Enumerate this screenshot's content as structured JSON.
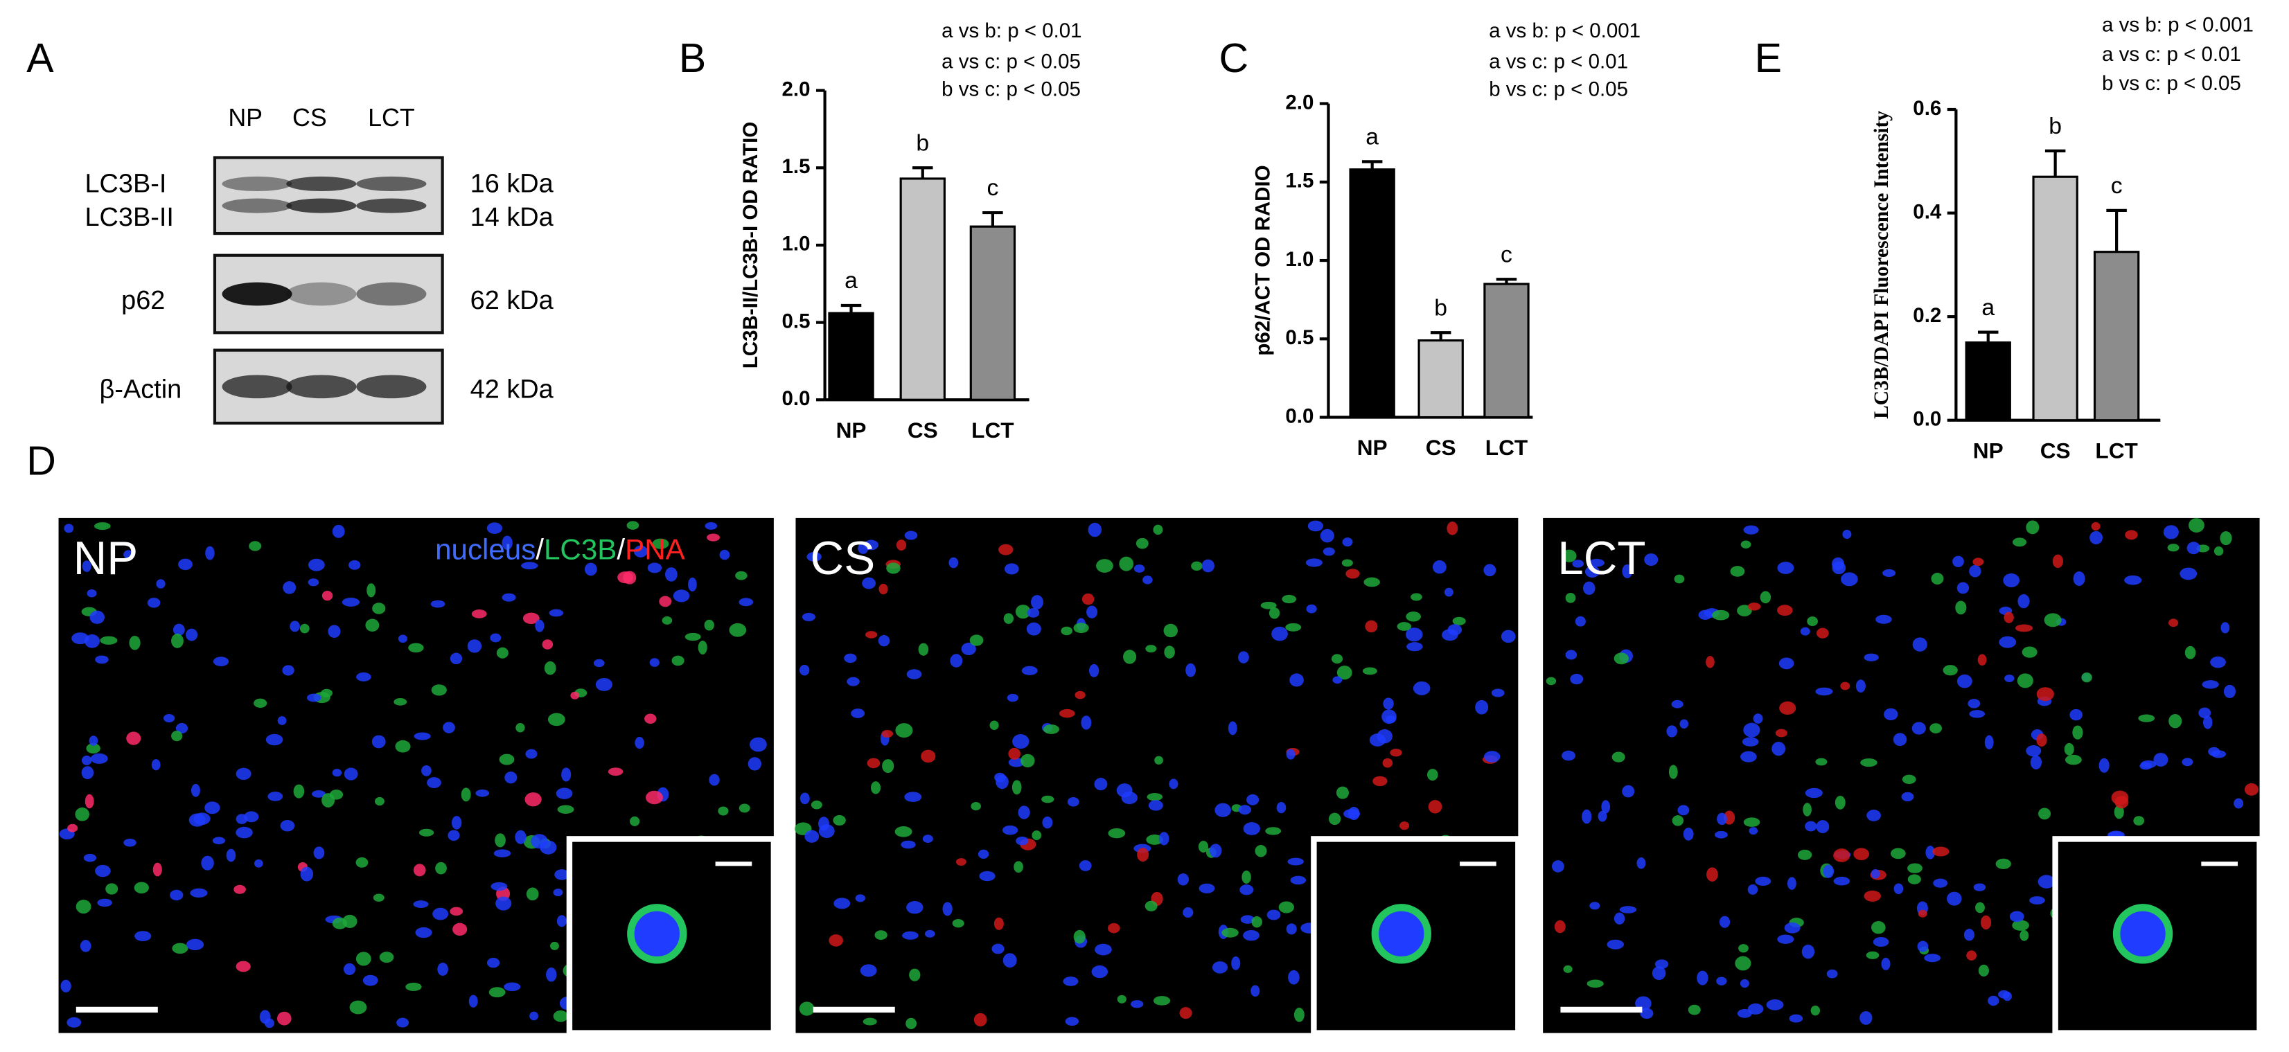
{
  "figure": {
    "panel_a": {
      "panel": "A",
      "lanes": [
        "NP",
        "CS",
        "LCT"
      ],
      "rows": [
        {
          "labels": [
            "LC3B-I",
            "LC3B-II"
          ],
          "sizes": [
            "16 kDa",
            "14 kDa"
          ]
        },
        {
          "labels": [
            "p62"
          ],
          "sizes": [
            "62 kDa"
          ]
        },
        {
          "labels": [
            "β-Actin"
          ],
          "sizes": [
            "42 kDa"
          ]
        }
      ]
    },
    "panel_d": {
      "panel": "D",
      "legend": [
        {
          "text": "nucleus",
          "color": "#3f6cff"
        },
        {
          "text": "/",
          "color": "#ffffff"
        },
        {
          "text": "LC3B",
          "color": "#22c55e"
        },
        {
          "text": "/",
          "color": "#ffffff"
        },
        {
          "text": "PNA",
          "color": "#ff2020"
        }
      ],
      "images": [
        "NP",
        "CS",
        "LCT"
      ]
    }
  },
  "chart_data": [
    {
      "type": "bar",
      "panel": "B",
      "y_label": "LC3B-II/LC3B-I OD RATIO",
      "annotations": [
        "a vs b: p < 0.01",
        "a vs c: p < 0.05",
        "b vs c: p < 0.05"
      ],
      "categories": [
        "NP",
        "CS",
        "LCT"
      ],
      "values": [
        0.56,
        1.43,
        1.12
      ],
      "errors": [
        0.05,
        0.07,
        0.09
      ],
      "bar_labels": [
        "a",
        "b",
        "c"
      ],
      "colors": [
        "#000000",
        "#c4c4c4",
        "#8c8c8c"
      ],
      "ylim": [
        0,
        2
      ],
      "yticks": [
        {
          "value": 0,
          "label": "0.0"
        },
        {
          "value": 0.5,
          "label": "0.5"
        },
        {
          "value": 1,
          "label": "1.0"
        },
        {
          "value": 1.5,
          "label": "1.5"
        },
        {
          "value": 2,
          "label": "2.0"
        }
      ]
    },
    {
      "type": "bar",
      "panel": "C",
      "y_label": "p62/ACT OD RADIO",
      "annotations": [
        "a vs b: p < 0.001",
        "a vs c: p < 0.01",
        "b vs c: p < 0.05"
      ],
      "categories": [
        "NP",
        "CS",
        "LCT"
      ],
      "values": [
        1.58,
        0.49,
        0.85
      ],
      "errors": [
        0.05,
        0.05,
        0.03
      ],
      "bar_labels": [
        "a",
        "b",
        "c"
      ],
      "colors": [
        "#000000",
        "#c4c4c4",
        "#8c8c8c"
      ],
      "ylim": [
        0,
        2
      ],
      "yticks": [
        {
          "value": 0,
          "label": "0.0"
        },
        {
          "value": 0.5,
          "label": "0.5"
        },
        {
          "value": 1,
          "label": "1.0"
        },
        {
          "value": 1.5,
          "label": "1.5"
        },
        {
          "value": 2,
          "label": "2.0"
        }
      ]
    },
    {
      "type": "bar",
      "panel": "E",
      "y_label": "LC3B/DAPI Fluorescence Intensity",
      "annotations": [
        "a vs b: p < 0.001",
        "a vs c: p < 0.01",
        "b vs c: p < 0.05"
      ],
      "categories": [
        "NP",
        "CS",
        "LCT"
      ],
      "values": [
        0.15,
        0.47,
        0.325
      ],
      "errors": [
        0.02,
        0.05,
        0.08
      ],
      "bar_labels": [
        "a",
        "b",
        "c"
      ],
      "colors": [
        "#000000",
        "#c4c4c4",
        "#8c8c8c"
      ],
      "ylim": [
        0,
        0.6
      ],
      "yticks": [
        {
          "value": 0,
          "label": "0.0"
        },
        {
          "value": 0.2,
          "label": "0.2"
        },
        {
          "value": 0.4,
          "label": "0.4"
        },
        {
          "value": 0.6,
          "label": "0.6"
        }
      ]
    }
  ]
}
